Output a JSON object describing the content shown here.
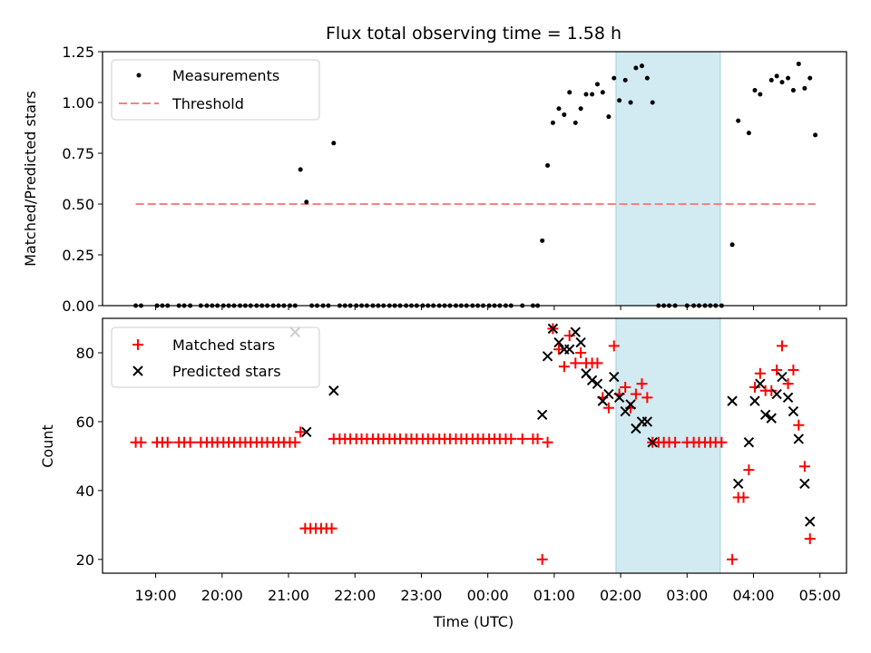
{
  "chart_data": [
    {
      "type": "scatter",
      "title": "Flux total observing time = 1.58 h",
      "xlabel": "",
      "ylabel": "Matched/Predicted stars",
      "ylim": [
        0,
        1.25
      ],
      "yticks": [
        "0.00",
        "0.25",
        "0.50",
        "0.75",
        "1.00",
        "1.25"
      ],
      "shaded_interval_hours": [
        25.93,
        27.5
      ],
      "shade_color": "#add8e6",
      "legend_position": "upper-left",
      "series": [
        {
          "name": "Measurements",
          "color": "#000000",
          "marker": "dot",
          "points": [
            [
              18.7,
              0
            ],
            [
              18.78,
              0
            ],
            [
              19.02,
              0
            ],
            [
              19.1,
              0
            ],
            [
              19.18,
              0
            ],
            [
              19.35,
              0
            ],
            [
              19.43,
              0
            ],
            [
              19.52,
              0
            ],
            [
              19.68,
              0
            ],
            [
              19.77,
              0
            ],
            [
              19.85,
              0
            ],
            [
              19.93,
              0
            ],
            [
              20.02,
              0
            ],
            [
              20.1,
              0
            ],
            [
              20.18,
              0
            ],
            [
              20.27,
              0
            ],
            [
              20.35,
              0
            ],
            [
              20.43,
              0
            ],
            [
              20.52,
              0
            ],
            [
              20.6,
              0
            ],
            [
              20.68,
              0
            ],
            [
              20.77,
              0
            ],
            [
              20.85,
              0
            ],
            [
              20.93,
              0
            ],
            [
              21.02,
              0
            ],
            [
              21.1,
              0
            ],
            [
              21.18,
              0.67
            ],
            [
              21.27,
              0.51
            ],
            [
              21.35,
              0
            ],
            [
              21.43,
              0
            ],
            [
              21.52,
              0
            ],
            [
              21.6,
              0
            ],
            [
              21.68,
              0.8
            ],
            [
              21.77,
              0
            ],
            [
              21.85,
              0
            ],
            [
              21.93,
              0
            ],
            [
              22.02,
              0
            ],
            [
              22.1,
              0
            ],
            [
              22.18,
              0
            ],
            [
              22.27,
              0
            ],
            [
              22.35,
              0
            ],
            [
              22.43,
              0
            ],
            [
              22.52,
              0
            ],
            [
              22.6,
              0
            ],
            [
              22.68,
              0
            ],
            [
              22.77,
              0
            ],
            [
              22.85,
              0
            ],
            [
              22.93,
              0
            ],
            [
              23.02,
              0
            ],
            [
              23.1,
              0
            ],
            [
              23.18,
              0
            ],
            [
              23.27,
              0
            ],
            [
              23.35,
              0
            ],
            [
              23.43,
              0
            ],
            [
              23.52,
              0
            ],
            [
              23.6,
              0
            ],
            [
              23.68,
              0
            ],
            [
              23.77,
              0
            ],
            [
              23.85,
              0
            ],
            [
              23.93,
              0
            ],
            [
              24.02,
              0
            ],
            [
              24.1,
              0
            ],
            [
              24.18,
              0
            ],
            [
              24.27,
              0
            ],
            [
              24.35,
              0
            ],
            [
              24.52,
              0
            ],
            [
              24.68,
              0
            ],
            [
              24.75,
              0
            ],
            [
              24.82,
              0.32
            ],
            [
              24.9,
              0.69
            ],
            [
              24.98,
              0.9
            ],
            [
              25.07,
              0.97
            ],
            [
              25.15,
              0.94
            ],
            [
              25.23,
              1.05
            ],
            [
              25.32,
              0.9
            ],
            [
              25.4,
              0.97
            ],
            [
              25.48,
              1.04
            ],
            [
              25.57,
              1.04
            ],
            [
              25.65,
              1.09
            ],
            [
              25.73,
              1.05
            ],
            [
              25.82,
              0.93
            ],
            [
              25.9,
              1.12
            ],
            [
              25.98,
              1.01
            ],
            [
              26.07,
              1.11
            ],
            [
              26.15,
              1.0
            ],
            [
              26.23,
              1.17
            ],
            [
              26.32,
              1.18
            ],
            [
              26.4,
              1.12
            ],
            [
              26.48,
              1.0
            ],
            [
              26.57,
              0
            ],
            [
              26.65,
              0
            ],
            [
              26.73,
              0
            ],
            [
              26.82,
              0
            ],
            [
              27.0,
              0
            ],
            [
              27.1,
              0
            ],
            [
              27.18,
              0
            ],
            [
              27.27,
              0
            ],
            [
              27.35,
              0
            ],
            [
              27.43,
              0
            ],
            [
              27.52,
              0
            ],
            [
              27.68,
              0.3
            ],
            [
              27.77,
              0.91
            ],
            [
              27.93,
              0.85
            ],
            [
              28.02,
              1.06
            ],
            [
              28.1,
              1.04
            ],
            [
              28.27,
              1.11
            ],
            [
              28.35,
              1.13
            ],
            [
              28.43,
              1.1
            ],
            [
              28.52,
              1.12
            ],
            [
              28.6,
              1.06
            ],
            [
              28.68,
              1.19
            ],
            [
              28.77,
              1.07
            ],
            [
              28.85,
              1.12
            ],
            [
              28.93,
              0.84
            ]
          ]
        },
        {
          "name": "Threshold",
          "color": "#ff7f7f",
          "marker": "dashed-line",
          "x": [
            18.7,
            28.93
          ],
          "y": [
            0.5,
            0.5
          ]
        }
      ]
    },
    {
      "type": "scatter",
      "title": "",
      "xlabel": "Time (UTC)",
      "ylabel": "Count",
      "ylim": [
        16,
        90
      ],
      "yticks": [
        "20",
        "40",
        "60",
        "80"
      ],
      "xticks": [
        "19:00",
        "20:00",
        "21:00",
        "22:00",
        "23:00",
        "00:00",
        "01:00",
        "02:00",
        "03:00",
        "04:00",
        "05:00"
      ],
      "xtick_hours": [
        19,
        20,
        21,
        22,
        23,
        24,
        25,
        26,
        27,
        28,
        29
      ],
      "xlim_hours": [
        18.2,
        29.4
      ],
      "shaded_interval_hours": [
        25.93,
        27.5
      ],
      "shade_color": "#add8e6",
      "legend_position": "upper-left",
      "series": [
        {
          "name": "Matched stars",
          "color": "#ff0000",
          "marker": "plus",
          "points": [
            [
              18.7,
              54
            ],
            [
              18.78,
              54
            ],
            [
              19.02,
              54
            ],
            [
              19.1,
              54
            ],
            [
              19.18,
              54
            ],
            [
              19.35,
              54
            ],
            [
              19.43,
              54
            ],
            [
              19.52,
              54
            ],
            [
              19.68,
              54
            ],
            [
              19.77,
              54
            ],
            [
              19.85,
              54
            ],
            [
              19.93,
              54
            ],
            [
              20.02,
              54
            ],
            [
              20.1,
              54
            ],
            [
              20.18,
              54
            ],
            [
              20.27,
              54
            ],
            [
              20.35,
              54
            ],
            [
              20.43,
              54
            ],
            [
              20.52,
              54
            ],
            [
              20.6,
              54
            ],
            [
              20.68,
              54
            ],
            [
              20.77,
              54
            ],
            [
              20.85,
              54
            ],
            [
              20.93,
              54
            ],
            [
              21.02,
              54
            ],
            [
              21.1,
              54
            ],
            [
              21.18,
              57
            ],
            [
              21.25,
              29
            ],
            [
              21.33,
              29
            ],
            [
              21.41,
              29
            ],
            [
              21.49,
              29
            ],
            [
              21.57,
              29
            ],
            [
              21.65,
              29
            ],
            [
              21.68,
              55
            ],
            [
              21.77,
              55
            ],
            [
              21.85,
              55
            ],
            [
              21.93,
              55
            ],
            [
              22.02,
              55
            ],
            [
              22.1,
              55
            ],
            [
              22.18,
              55
            ],
            [
              22.27,
              55
            ],
            [
              22.35,
              55
            ],
            [
              22.43,
              55
            ],
            [
              22.52,
              55
            ],
            [
              22.6,
              55
            ],
            [
              22.68,
              55
            ],
            [
              22.77,
              55
            ],
            [
              22.85,
              55
            ],
            [
              22.93,
              55
            ],
            [
              23.02,
              55
            ],
            [
              23.1,
              55
            ],
            [
              23.18,
              55
            ],
            [
              23.27,
              55
            ],
            [
              23.35,
              55
            ],
            [
              23.43,
              55
            ],
            [
              23.52,
              55
            ],
            [
              23.6,
              55
            ],
            [
              23.68,
              55
            ],
            [
              23.77,
              55
            ],
            [
              23.85,
              55
            ],
            [
              23.93,
              55
            ],
            [
              24.02,
              55
            ],
            [
              24.1,
              55
            ],
            [
              24.18,
              55
            ],
            [
              24.27,
              55
            ],
            [
              24.35,
              55
            ],
            [
              24.52,
              55
            ],
            [
              24.68,
              55
            ],
            [
              24.75,
              55
            ],
            [
              24.82,
              20
            ],
            [
              24.9,
              54
            ],
            [
              24.98,
              87
            ],
            [
              25.07,
              81
            ],
            [
              25.15,
              76
            ],
            [
              25.23,
              85
            ],
            [
              25.32,
              77
            ],
            [
              25.4,
              80
            ],
            [
              25.48,
              77
            ],
            [
              25.57,
              77
            ],
            [
              25.65,
              77
            ],
            [
              25.73,
              67
            ],
            [
              25.82,
              64
            ],
            [
              25.9,
              82
            ],
            [
              25.98,
              68
            ],
            [
              26.07,
              70
            ],
            [
              26.15,
              64
            ],
            [
              26.23,
              68
            ],
            [
              26.32,
              71
            ],
            [
              26.4,
              67
            ],
            [
              26.48,
              54
            ],
            [
              26.57,
              54
            ],
            [
              26.65,
              54
            ],
            [
              26.73,
              54
            ],
            [
              26.82,
              54
            ],
            [
              27.0,
              54
            ],
            [
              27.1,
              54
            ],
            [
              27.18,
              54
            ],
            [
              27.27,
              54
            ],
            [
              27.35,
              54
            ],
            [
              27.43,
              54
            ],
            [
              27.52,
              54
            ],
            [
              27.68,
              20
            ],
            [
              27.77,
              38
            ],
            [
              27.85,
              38
            ],
            [
              27.93,
              46
            ],
            [
              28.02,
              70
            ],
            [
              28.1,
              74
            ],
            [
              28.18,
              69
            ],
            [
              28.27,
              69
            ],
            [
              28.35,
              75
            ],
            [
              28.43,
              82
            ],
            [
              28.52,
              71
            ],
            [
              28.6,
              75
            ],
            [
              28.68,
              59
            ],
            [
              28.77,
              47
            ],
            [
              28.85,
              26
            ]
          ]
        },
        {
          "name": "Predicted stars",
          "color": "#000000",
          "marker": "x",
          "points": [
            [
              21.1,
              86
            ],
            [
              21.27,
              57
            ],
            [
              21.68,
              69
            ],
            [
              24.82,
              62
            ],
            [
              24.9,
              79
            ],
            [
              24.98,
              87
            ],
            [
              25.07,
              83
            ],
            [
              25.15,
              81
            ],
            [
              25.23,
              81
            ],
            [
              25.32,
              86
            ],
            [
              25.4,
              83
            ],
            [
              25.48,
              74
            ],
            [
              25.57,
              72
            ],
            [
              25.65,
              71
            ],
            [
              25.73,
              66
            ],
            [
              25.82,
              68
            ],
            [
              25.9,
              73
            ],
            [
              25.98,
              67
            ],
            [
              26.07,
              63
            ],
            [
              26.15,
              65
            ],
            [
              26.23,
              58
            ],
            [
              26.32,
              60
            ],
            [
              26.4,
              60
            ],
            [
              26.48,
              54
            ],
            [
              27.68,
              66
            ],
            [
              27.77,
              42
            ],
            [
              27.93,
              54
            ],
            [
              28.02,
              66
            ],
            [
              28.1,
              71
            ],
            [
              28.18,
              62
            ],
            [
              28.27,
              61
            ],
            [
              28.35,
              68
            ],
            [
              28.43,
              73
            ],
            [
              28.52,
              67
            ],
            [
              28.6,
              63
            ],
            [
              28.68,
              55
            ],
            [
              28.77,
              42
            ],
            [
              28.85,
              31
            ]
          ]
        }
      ]
    }
  ]
}
